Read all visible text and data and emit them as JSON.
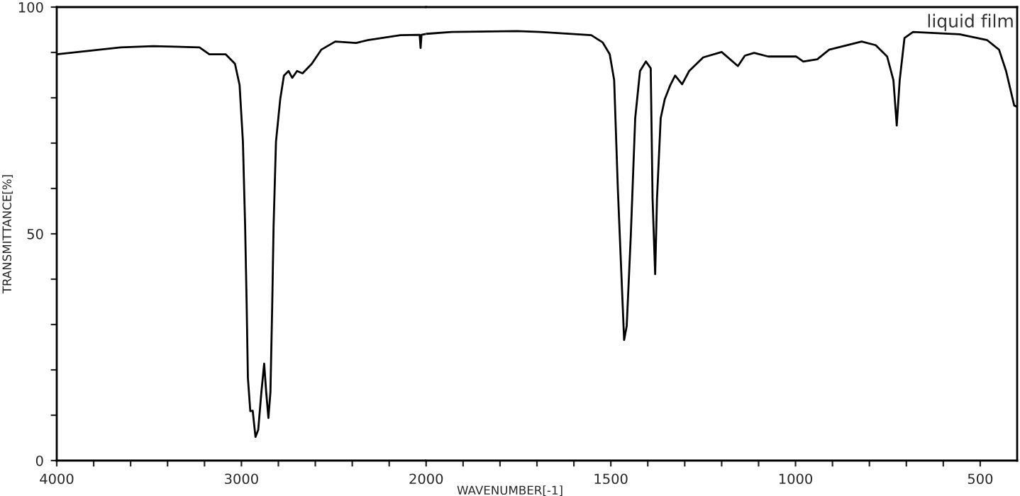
{
  "chart_data": [
    {
      "type": "line",
      "ylabel": "TRANSMITTANCE[%]",
      "x": [
        4000,
        3654,
        3477,
        3227,
        3174,
        3086,
        3035,
        3010,
        2992,
        2980,
        2972,
        2965,
        2952,
        2939,
        2924,
        2909,
        2892,
        2877,
        2866,
        2854,
        2843,
        2833,
        2826,
        2813,
        2790,
        2770,
        2745,
        2725,
        2699,
        2669,
        2619,
        2568,
        2492,
        2379,
        2316,
        2139,
        2035,
        2030,
        2025,
        2000
      ],
      "series": [
        {
          "color": "#000000",
          "values": [
            89.6,
            91.1,
            91.4,
            91.1,
            89.6,
            89.6,
            87.5,
            82.8,
            70.3,
            51.6,
            35,
            18.2,
            10.9,
            11,
            5.2,
            6.8,
            15.1,
            21.4,
            15.1,
            9.4,
            15.1,
            35,
            51.6,
            70.3,
            79.7,
            84.9,
            85.9,
            84.4,
            85.9,
            85.4,
            87.5,
            90.6,
            92.4,
            92.1,
            92.7,
            93.8,
            93.9,
            91,
            93.9,
            94.1
          ]
        }
      ],
      "xlim": [
        4000,
        2000
      ],
      "xticks": [
        4000,
        {
          "value": 3800,
          "label": null
        },
        {
          "value": 3600,
          "label": null
        },
        {
          "value": 3400,
          "label": null
        },
        {
          "value": 3200,
          "label": null
        },
        3000,
        {
          "value": 2800,
          "label": null
        },
        {
          "value": 2600,
          "label": null
        },
        {
          "value": 2400,
          "label": null
        },
        {
          "value": 2200,
          "label": null
        },
        2000
      ],
      "ylim": [
        0,
        100
      ],
      "yticks": [
        0,
        {
          "value": 10,
          "label": null
        },
        {
          "value": 20,
          "label": null
        },
        {
          "value": 30,
          "label": null
        },
        {
          "value": 40,
          "label": null
        },
        50,
        {
          "value": 60,
          "label": null
        },
        {
          "value": 70,
          "label": null
        },
        {
          "value": 80,
          "label": null
        },
        {
          "value": 90,
          "label": null
        },
        100
      ],
      "grid": false,
      "marker": "none",
      "line_style": "solid"
    },
    {
      "type": "line",
      "xlabel": "WAVENUMBER[-1]",
      "annotations": [
        "liquid film"
      ],
      "x": [
        2000,
        1931,
        1754,
        1691,
        1553,
        1522,
        1503,
        1491,
        1481,
        1472,
        1464,
        1457,
        1446,
        1434,
        1421,
        1405,
        1392,
        1387,
        1380,
        1375,
        1365,
        1354,
        1339,
        1326,
        1307,
        1288,
        1250,
        1200,
        1156,
        1137,
        1112,
        1074,
        998,
        979,
        941,
        909,
        821,
        783,
        752,
        735,
        726,
        718,
        705,
        682,
        556,
        481,
        449,
        430,
        408,
        400
      ],
      "series": [
        {
          "color": "#000000",
          "values": [
            94.1,
            94.5,
            94.7,
            94.5,
            93.8,
            92.2,
            89.6,
            83.9,
            59.9,
            42.2,
            26.6,
            29.7,
            49.5,
            75.5,
            85.9,
            88,
            86.5,
            57.8,
            41.1,
            57.8,
            75.5,
            79.7,
            82.8,
            84.9,
            83,
            85.9,
            88.9,
            90.1,
            87,
            89.3,
            89.9,
            89.1,
            89.1,
            88,
            88.5,
            90.6,
            92.4,
            91.6,
            89.1,
            83.9,
            73.9,
            83.9,
            93.2,
            94.5,
            94,
            92.7,
            90.6,
            85.9,
            78.3,
            78
          ]
        }
      ],
      "xlim": [
        2000,
        400
      ],
      "xticks": [
        {
          "value": 1900,
          "label": null
        },
        {
          "value": 1800,
          "label": null
        },
        {
          "value": 1700,
          "label": null
        },
        {
          "value": 1600,
          "label": null
        },
        1500,
        {
          "value": 1400,
          "label": null
        },
        {
          "value": 1300,
          "label": null
        },
        {
          "value": 1200,
          "label": null
        },
        {
          "value": 1100,
          "label": null
        },
        1000,
        {
          "value": 900,
          "label": null
        },
        {
          "value": 800,
          "label": null
        },
        {
          "value": 700,
          "label": null
        },
        {
          "value": 600,
          "label": null
        },
        500
      ],
      "ylim": [
        0,
        100
      ],
      "tick_labels": "x",
      "grid": false,
      "marker": "none",
      "line_style": "solid"
    }
  ]
}
